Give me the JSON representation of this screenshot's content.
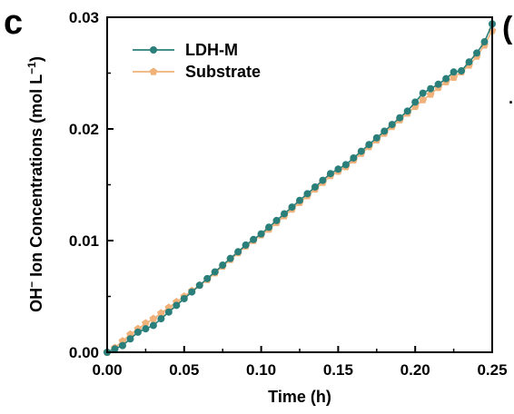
{
  "panel_label": "c",
  "edge_glyph": "(",
  "edge_dot": "·",
  "colors": {
    "ldh_m": "#2a7f7a",
    "substrate": "#f0b27a",
    "axis": "#000000"
  },
  "chart_data": {
    "type": "line",
    "xlabel": "Time (h)",
    "ylabel": "OH⁻ Ion Concentrations (mol L⁻¹)",
    "xlim": [
      0,
      0.25
    ],
    "ylim": [
      0,
      0.03
    ],
    "xticks": [
      "0.00",
      "0.05",
      "0.10",
      "0.15",
      "0.20",
      "0.25"
    ],
    "yticks": [
      "0.00",
      "0.01",
      "0.02",
      "0.03"
    ],
    "grid": false,
    "legend_position": "top-left",
    "series": [
      {
        "name": "LDH-M",
        "color": "#2a7f7a",
        "marker": "circle",
        "x": [
          0.0,
          0.005,
          0.01,
          0.015,
          0.02,
          0.025,
          0.03,
          0.035,
          0.04,
          0.045,
          0.05,
          0.055,
          0.06,
          0.065,
          0.07,
          0.075,
          0.08,
          0.085,
          0.09,
          0.095,
          0.1,
          0.105,
          0.11,
          0.115,
          0.12,
          0.125,
          0.13,
          0.135,
          0.14,
          0.145,
          0.15,
          0.155,
          0.16,
          0.165,
          0.17,
          0.175,
          0.18,
          0.185,
          0.19,
          0.195,
          0.2,
          0.205,
          0.21,
          0.215,
          0.22,
          0.225,
          0.23,
          0.235,
          0.24,
          0.245,
          0.25
        ],
        "y": [
          0.0,
          0.0003,
          0.0006,
          0.0012,
          0.0018,
          0.0021,
          0.0024,
          0.003,
          0.0036,
          0.0042,
          0.0048,
          0.0054,
          0.006,
          0.0066,
          0.0072,
          0.0078,
          0.0084,
          0.009,
          0.0096,
          0.0101,
          0.0106,
          0.0112,
          0.0118,
          0.0124,
          0.013,
          0.0136,
          0.0142,
          0.0148,
          0.0154,
          0.016,
          0.0164,
          0.0168,
          0.0174,
          0.018,
          0.0186,
          0.0192,
          0.0198,
          0.0204,
          0.021,
          0.0216,
          0.0224,
          0.0232,
          0.0236,
          0.024,
          0.0245,
          0.0251,
          0.0252,
          0.026,
          0.0268,
          0.0278,
          0.0294
        ]
      },
      {
        "name": "Substrate",
        "color": "#f0b27a",
        "marker": "pentagon",
        "x": [
          0.0,
          0.005,
          0.01,
          0.015,
          0.02,
          0.025,
          0.03,
          0.035,
          0.04,
          0.045,
          0.05,
          0.055,
          0.06,
          0.065,
          0.07,
          0.075,
          0.08,
          0.085,
          0.09,
          0.095,
          0.1,
          0.105,
          0.11,
          0.115,
          0.12,
          0.125,
          0.13,
          0.135,
          0.14,
          0.145,
          0.15,
          0.155,
          0.16,
          0.165,
          0.17,
          0.175,
          0.18,
          0.185,
          0.19,
          0.195,
          0.2,
          0.205,
          0.21,
          0.215,
          0.22,
          0.225,
          0.23,
          0.235,
          0.24,
          0.245,
          0.25
        ],
        "y": [
          0.0,
          0.0004,
          0.001,
          0.0016,
          0.0021,
          0.0026,
          0.003,
          0.0035,
          0.004,
          0.0045,
          0.005,
          0.0055,
          0.006,
          0.0065,
          0.0071,
          0.0077,
          0.0083,
          0.0089,
          0.0095,
          0.01,
          0.0105,
          0.011,
          0.0116,
          0.0122,
          0.0128,
          0.0134,
          0.014,
          0.0146,
          0.0152,
          0.0158,
          0.0162,
          0.0166,
          0.0172,
          0.0178,
          0.0184,
          0.019,
          0.0196,
          0.0202,
          0.0208,
          0.0214,
          0.022,
          0.0226,
          0.0231,
          0.0237,
          0.0242,
          0.0246,
          0.0251,
          0.0257,
          0.0265,
          0.0275,
          0.0288
        ]
      }
    ]
  }
}
